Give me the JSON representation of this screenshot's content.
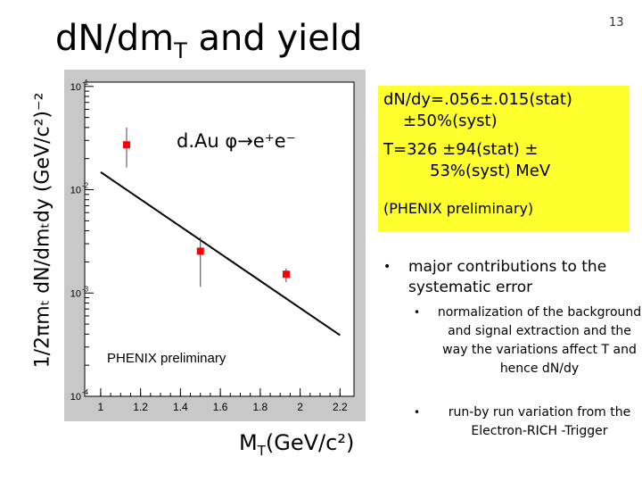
{
  "slide": {
    "title_main": "d",
    "title_n": "N/dm",
    "title_sub": "T",
    "title_rest": " and yield",
    "number": "13"
  },
  "chart_data": {
    "type": "scatter",
    "x": [
      1.13,
      1.5,
      1.93
    ],
    "y": [
      0.0272,
      0.00254,
      0.00152
    ],
    "yerr_low": [
      0.0108,
      0.00139,
      0.00025
    ],
    "yerr_high": [
      0.0128,
      0.00092,
      0.00021
    ],
    "fit_line": {
      "x": [
        1.0,
        2.2
      ],
      "y": [
        0.0148,
        0.00039
      ]
    },
    "marker_color": "#ff0000",
    "xlim": [
      0.92,
      2.27
    ],
    "ylim": [
      0.0001,
      0.11
    ],
    "y_scale": "log",
    "x_ticks": [
      "1",
      "1.2",
      "1.4",
      "1.6",
      "1.8",
      "2",
      "2.2"
    ],
    "x_tick_values": [
      1.0,
      1.2,
      1.4,
      1.6,
      1.8,
      2.0,
      2.2
    ],
    "y_ticks": [
      "10",
      "10",
      "10",
      "10"
    ],
    "y_tick_exps": [
      "-1",
      "-2",
      "-3",
      "-4"
    ],
    "y_tick_values": [
      0.1,
      0.01,
      0.001,
      0.0001
    ],
    "annotation_decay": "d.Au φ→e⁺e⁻",
    "annotation_prelim": "PHENIX preliminary",
    "xlabel_main": "M",
    "xlabel_sub": "T",
    "xlabel_rest": "(GeV/c²)",
    "ylabel": "1/2πmₜ dN/dmₜdy (GeV/c²)⁻²"
  },
  "infobox": {
    "color": "#ffff2e",
    "line1": "dN/dy=.056±.015(stat)",
    "line2": "±50%(syst)",
    "line3": "T=326 ±94(stat) ±",
    "line4": "53%(syst) MeV",
    "line5": "(PHENIX preliminary)"
  },
  "bullets": {
    "main": "major contributions to the systematic error",
    "sub1": "normalization of the background and signal extraction and the way the variations affect T and hence dN/dy",
    "sub2": "run-by run variation from the Electron-RICH -Trigger"
  }
}
